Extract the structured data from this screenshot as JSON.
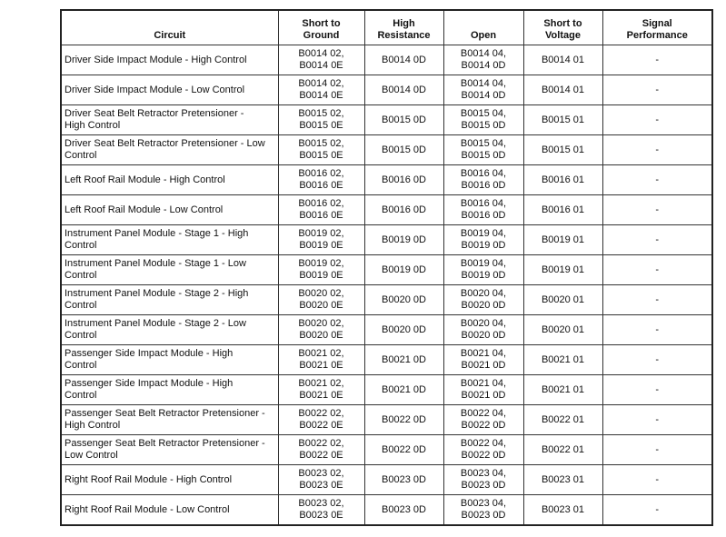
{
  "headers": [
    "Circuit",
    "Short to\nGround",
    "High\nResistance",
    "Open",
    "Short to\nVoltage",
    "Signal\nPerformance"
  ],
  "rows": [
    {
      "circuit": "Driver Side Impact Module - High Control",
      "stg": "B0014 02,\nB0014 0E",
      "hr": "B0014 0D",
      "open": "B0014 04,\nB0014 0D",
      "stv": "B0014 01",
      "sp": "-"
    },
    {
      "circuit": "Driver Side Impact Module - Low Control",
      "stg": "B0014 02,\nB0014 0E",
      "hr": "B0014 0D",
      "open": "B0014 04,\nB0014 0D",
      "stv": "B0014 01",
      "sp": "-"
    },
    {
      "circuit": "Driver Seat Belt Retractor Pretensioner -\nHigh Control",
      "stg": "B0015 02,\nB0015 0E",
      "hr": "B0015 0D",
      "open": "B0015 04,\nB0015 0D",
      "stv": "B0015 01",
      "sp": "-"
    },
    {
      "circuit": "Driver Seat Belt Retractor Pretensioner - Low\nControl",
      "stg": "B0015 02,\nB0015 0E",
      "hr": "B0015 0D",
      "open": "B0015 04,\nB0015 0D",
      "stv": "B0015 01",
      "sp": "-"
    },
    {
      "circuit": "Left Roof Rail Module - High Control",
      "stg": "B0016 02,\nB0016 0E",
      "hr": "B0016 0D",
      "open": "B0016 04,\nB0016 0D",
      "stv": "B0016 01",
      "sp": "-"
    },
    {
      "circuit": "Left Roof Rail Module - Low Control",
      "stg": "B0016 02,\nB0016 0E",
      "hr": "B0016 0D",
      "open": "B0016 04,\nB0016 0D",
      "stv": "B0016 01",
      "sp": "-"
    },
    {
      "circuit": "Instrument Panel Module - Stage 1 - High\nControl",
      "stg": "B0019 02,\nB0019 0E",
      "hr": "B0019 0D",
      "open": "B0019 04,\nB0019 0D",
      "stv": "B0019 01",
      "sp": "-"
    },
    {
      "circuit": "Instrument Panel Module - Stage 1 - Low\nControl",
      "stg": "B0019 02,\nB0019 0E",
      "hr": "B0019 0D",
      "open": "B0019 04,\nB0019 0D",
      "stv": "B0019 01",
      "sp": "-"
    },
    {
      "circuit": "Instrument Panel Module - Stage 2 - High\nControl",
      "stg": "B0020 02,\nB0020 0E",
      "hr": "B0020 0D",
      "open": "B0020 04,\nB0020 0D",
      "stv": "B0020 01",
      "sp": "-"
    },
    {
      "circuit": "Instrument Panel Module - Stage 2 - Low\nControl",
      "stg": "B0020 02,\nB0020 0E",
      "hr": "B0020 0D",
      "open": "B0020 04,\nB0020 0D",
      "stv": "B0020 01",
      "sp": "-"
    },
    {
      "circuit": "Passenger Side Impact Module - High\nControl",
      "stg": "B0021 02,\nB0021 0E",
      "hr": "B0021 0D",
      "open": "B0021 04,\nB0021 0D",
      "stv": "B0021 01",
      "sp": "-"
    },
    {
      "circuit": "Passenger Side Impact Module - High\nControl",
      "stg": "B0021 02,\nB0021 0E",
      "hr": "B0021 0D",
      "open": "B0021 04,\nB0021 0D",
      "stv": "B0021 01",
      "sp": "-"
    },
    {
      "circuit": "Passenger Seat Belt Retractor Pretensioner -\nHigh Control",
      "stg": "B0022 02,\nB0022 0E",
      "hr": "B0022 0D",
      "open": "B0022 04,\nB0022 0D",
      "stv": "B0022 01",
      "sp": "-"
    },
    {
      "circuit": "Passenger Seat Belt Retractor Pretensioner -\nLow Control",
      "stg": "B0022 02,\nB0022 0E",
      "hr": "B0022 0D",
      "open": "B0022 04,\nB0022 0D",
      "stv": "B0022 01",
      "sp": "-"
    },
    {
      "circuit": "Right Roof Rail Module - High Control",
      "stg": "B0023 02,\nB0023 0E",
      "hr": "B0023 0D",
      "open": "B0023 04,\nB0023 0D",
      "stv": "B0023 01",
      "sp": "-"
    },
    {
      "circuit": "Right Roof Rail Module - Low Control",
      "stg": "B0023 02,\nB0023 0E",
      "hr": "B0023 0D",
      "open": "B0023 04,\nB0023 0D",
      "stv": "B0023 01",
      "sp": "-"
    }
  ]
}
